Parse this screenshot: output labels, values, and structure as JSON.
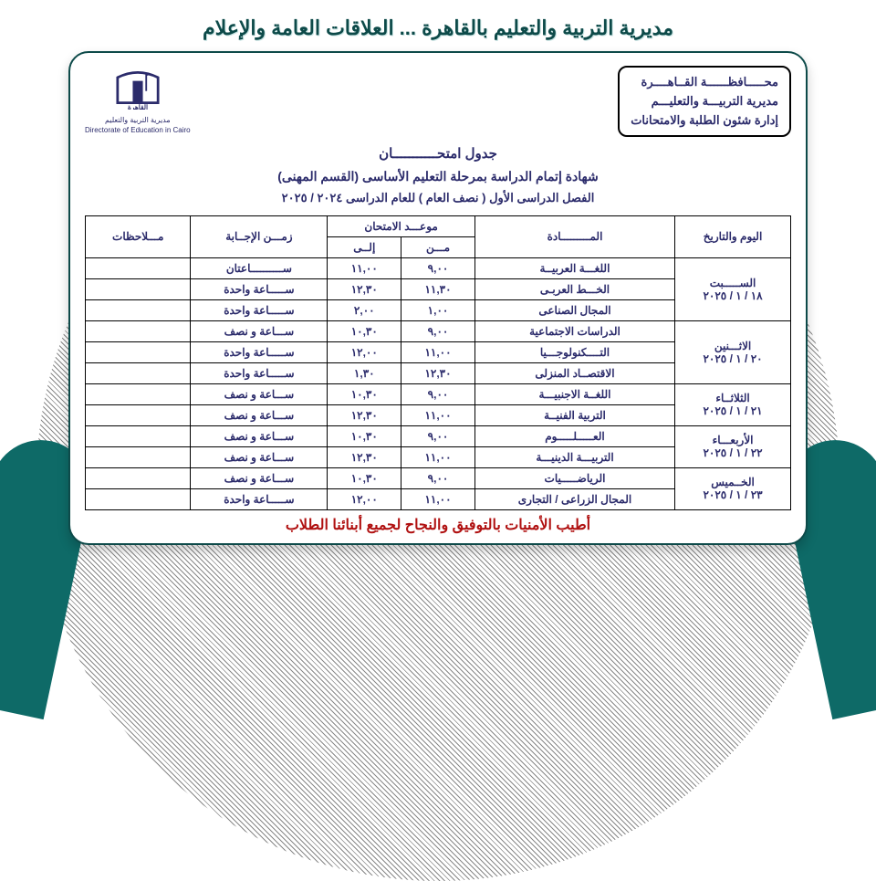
{
  "page_title": "مديرية التربية والتعليم بالقاهرة ... العلاقات العامة والإعلام",
  "org_box": {
    "line1": "محـــــافظــــــة القــاهــــرة",
    "line2": "مديرية التربيـــة والتعليـــم",
    "line3": "إدارة شئون الطلبة والامتحانات"
  },
  "logo_caption_ar": "مديرية التربية والتعليم",
  "logo_caption_en": "Directorate of Education in Cairo",
  "titles": {
    "t1": "جدول امتحـــــــــــان",
    "t2": "شهادة إتمام الدراسة بمرحلة التعليم الأساسى (القسم المهنى)",
    "t3": "الفصل الدراسى الأول ( نصف العام ) للعام الدراسى ٢٠٢٤ / ٢٠٢٥"
  },
  "table": {
    "columns": {
      "day": "اليوم والتاريخ",
      "subject": "المـــــــــادة",
      "exam_time": "موعـــد الامتحان",
      "from": "مـــن",
      "to": "إلــى",
      "duration": "زمـــن الإجــابة",
      "notes": "مـــلاحظات"
    },
    "days": [
      {
        "day_lines": [
          "الســـــبت",
          "١٨ / ١ / ٢٠٢٥"
        ],
        "rows": [
          {
            "subject": "اللغـــة العربيــة",
            "from": "٩,٠٠",
            "to": "١١,٠٠",
            "duration": "ســــــــــاعتان",
            "notes": ""
          },
          {
            "subject": "الخـــط العربـى",
            "from": "١١,٣٠",
            "to": "١٢,٣٠",
            "duration": "ســـــاعة واحدة",
            "notes": ""
          },
          {
            "subject": "المجال الصناعى",
            "from": "١,٠٠",
            "to": "٢,٠٠",
            "duration": "ســـــاعة واحدة",
            "notes": ""
          }
        ]
      },
      {
        "day_lines": [
          "الاثـــنين",
          "٢٠ / ١ / ٢٠٢٥"
        ],
        "rows": [
          {
            "subject": "الدراسات الاجتماعية",
            "from": "٩,٠٠",
            "to": "١٠,٣٠",
            "duration": "ســـاعة و نصف",
            "notes": ""
          },
          {
            "subject": "التــــكنولوجـــيا",
            "from": "١١,٠٠",
            "to": "١٢,٠٠",
            "duration": "ســـــاعة واحدة",
            "notes": ""
          },
          {
            "subject": "الاقتصــاد المنزلى",
            "from": "١٢,٣٠",
            "to": "١,٣٠",
            "duration": "ســـــاعة واحدة",
            "notes": ""
          }
        ]
      },
      {
        "day_lines": [
          "الثلاثــاء",
          "٢١ / ١ / ٢٠٢٥"
        ],
        "rows": [
          {
            "subject": "اللغــة الاجنبيـــة",
            "from": "٩,٠٠",
            "to": "١٠,٣٠",
            "duration": "ســـاعة و نصف",
            "notes": ""
          },
          {
            "subject": "التربية الفنيــة",
            "from": "١١,٠٠",
            "to": "١٢,٣٠",
            "duration": "ســـاعة و نصف",
            "notes": ""
          }
        ]
      },
      {
        "day_lines": [
          "الأربعـــاء",
          "٢٢ / ١ / ٢٠٢٥"
        ],
        "rows": [
          {
            "subject": "العـــــلـــــوم",
            "from": "٩,٠٠",
            "to": "١٠,٣٠",
            "duration": "ســـاعة و نصف",
            "notes": ""
          },
          {
            "subject": "التربيـــة الدينيـــة",
            "from": "١١,٠٠",
            "to": "١٢,٣٠",
            "duration": "ســـاعة و نصف",
            "notes": ""
          }
        ]
      },
      {
        "day_lines": [
          "الخــميس",
          "٢٣ / ١ / ٢٠٢٥"
        ],
        "rows": [
          {
            "subject": "الرياضـــــيات",
            "from": "٩,٠٠",
            "to": "١٠,٣٠",
            "duration": "ســـاعة و نصف",
            "notes": ""
          },
          {
            "subject": "المجال الزراعى / التجارى",
            "from": "١١,٠٠",
            "to": "١٢,٠٠",
            "duration": "ســـــاعة واحدة",
            "notes": ""
          }
        ]
      }
    ]
  },
  "footer_wish": "أطيب الأمنيات بالتوفيق والنجاح لجميع أبنائنا الطلاب",
  "style": {
    "page_bg": "#ffffff",
    "hatch_color": "#888888",
    "teal": "#0e6a67",
    "title_color": "#0d4a49",
    "ink": "#2b2b6b",
    "wish_color": "#b01111",
    "card_border": "#0d4a49",
    "table_border": "#000000",
    "title_fontsize": 22,
    "footer_fontsize": 16
  }
}
